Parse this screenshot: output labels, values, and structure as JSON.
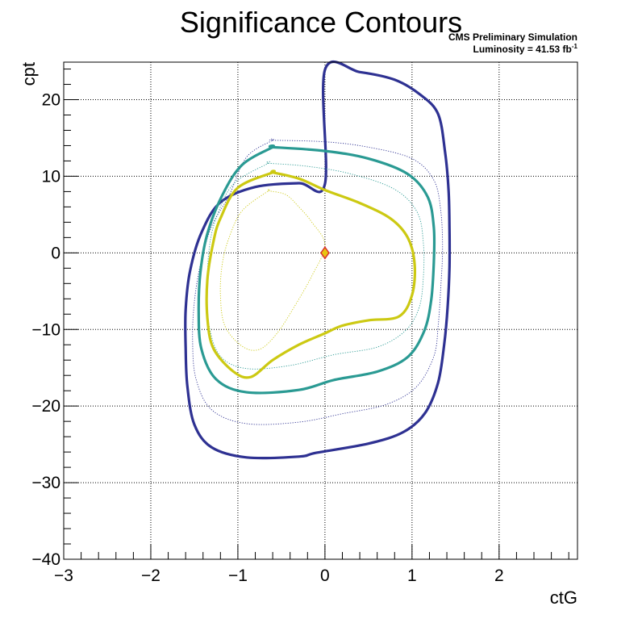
{
  "chart_data": {
    "type": "contour",
    "title": "Significance Contours",
    "annotations": {
      "experiment": "CMS Preliminary Simulation",
      "luminosity_text": "Luminosity = 41.53 fb",
      "luminosity_exponent": "-1"
    },
    "xlabel": "ctG",
    "ylabel": "cpt",
    "xlim": [
      -3,
      2.9
    ],
    "ylim": [
      -40,
      24.9
    ],
    "x_ticks": [
      -3,
      -2,
      -1,
      0,
      1,
      2
    ],
    "y_ticks": [
      -40,
      -30,
      -20,
      -10,
      0,
      10,
      20
    ],
    "x_tick_labels": [
      "−3",
      "−2",
      "−1",
      "0",
      "1",
      "2"
    ],
    "y_tick_labels": [
      "−40",
      "−30",
      "−20",
      "−10",
      "0",
      "10",
      "20"
    ],
    "grid": true,
    "best_fit_point": {
      "x": 0,
      "y": 0,
      "color": "#e8c410",
      "edge_color": "#d9302c"
    },
    "series": [
      {
        "style": "thick",
        "color": "#2e3192",
        "points": [
          [
            0,
            23.9
          ],
          [
            0.4,
            23.6
          ],
          [
            0.8,
            22.6
          ],
          [
            1.1,
            20.6
          ],
          [
            1.3,
            18.1
          ],
          [
            1.38,
            13.1
          ],
          [
            1.42,
            8.1
          ],
          [
            1.43,
            3.1
          ],
          [
            1.43,
            -1.9
          ],
          [
            1.41,
            -6.9
          ],
          [
            1.37,
            -11.9
          ],
          [
            1.3,
            -16.9
          ],
          [
            1.15,
            -20.9
          ],
          [
            0.9,
            -23.4
          ],
          [
            0.5,
            -24.9
          ],
          [
            -0.1,
            -26.1
          ],
          [
            -0.3,
            -26.6
          ],
          [
            -0.9,
            -26.7
          ],
          [
            -1.3,
            -25.4
          ],
          [
            -1.5,
            -22.4
          ],
          [
            -1.58,
            -17.4
          ],
          [
            -1.6,
            -12.4
          ],
          [
            -1.6,
            -7.4
          ],
          [
            -1.55,
            -2.4
          ],
          [
            -1.42,
            2.6
          ],
          [
            -1.2,
            6.6
          ],
          [
            -0.8,
            8.6
          ],
          [
            -0.3,
            9.1
          ],
          [
            0,
            9.0
          ]
        ]
      },
      {
        "style": "thin",
        "color": "#2e3192",
        "points": [
          [
            -0.6,
            14.7
          ],
          [
            0,
            14.5
          ],
          [
            0.5,
            13.8
          ],
          [
            1.0,
            12.3
          ],
          [
            1.25,
            9.5
          ],
          [
            1.33,
            5.5
          ],
          [
            1.35,
            0.5
          ],
          [
            1.33,
            -4.5
          ],
          [
            1.3,
            -9.5
          ],
          [
            1.25,
            -13.5
          ],
          [
            1.05,
            -17.5
          ],
          [
            0.7,
            -19.8
          ],
          [
            0.2,
            -21.0
          ],
          [
            -0.3,
            -22.1
          ],
          [
            -0.9,
            -22.3
          ],
          [
            -1.3,
            -20.5
          ],
          [
            -1.48,
            -16.5
          ],
          [
            -1.52,
            -11.5
          ],
          [
            -1.5,
            -6.5
          ],
          [
            -1.43,
            -1.5
          ],
          [
            -1.3,
            3.5
          ],
          [
            -1.1,
            7.5
          ],
          [
            -0.9,
            12.5
          ],
          [
            -0.6,
            14.7
          ]
        ]
      },
      {
        "style": "thick",
        "color": "#2a9a93",
        "points": [
          [
            -0.6,
            13.8
          ],
          [
            0,
            13.3
          ],
          [
            0.5,
            12.3
          ],
          [
            0.95,
            10.3
          ],
          [
            1.18,
            7.3
          ],
          [
            1.25,
            3.3
          ],
          [
            1.25,
            -1.2
          ],
          [
            1.22,
            -6.2
          ],
          [
            1.14,
            -10.2
          ],
          [
            0.95,
            -13.6
          ],
          [
            0.6,
            -15.5
          ],
          [
            0.1,
            -16.6
          ],
          [
            -0.3,
            -17.9
          ],
          [
            -0.9,
            -18.2
          ],
          [
            -1.25,
            -16.5
          ],
          [
            -1.42,
            -12.5
          ],
          [
            -1.45,
            -7.5
          ],
          [
            -1.43,
            -2.5
          ],
          [
            -1.35,
            2.5
          ],
          [
            -1.18,
            7.5
          ],
          [
            -0.95,
            11.5
          ],
          [
            -0.6,
            13.8
          ]
        ]
      },
      {
        "style": "thin",
        "color": "#2a9a93",
        "points": [
          [
            -0.65,
            11.7
          ],
          [
            -0.2,
            11.3
          ],
          [
            0.3,
            10.3
          ],
          [
            0.8,
            8.3
          ],
          [
            1.06,
            5.3
          ],
          [
            1.13,
            1.3
          ],
          [
            1.13,
            -3.2
          ],
          [
            1.08,
            -7.2
          ],
          [
            0.92,
            -10.2
          ],
          [
            0.6,
            -12.3
          ],
          [
            0.1,
            -13.3
          ],
          [
            -0.4,
            -14.7
          ],
          [
            -0.9,
            -15.1
          ],
          [
            -1.2,
            -13.5
          ],
          [
            -1.33,
            -9.5
          ],
          [
            -1.35,
            -4.5
          ],
          [
            -1.33,
            0.5
          ],
          [
            -1.25,
            4.5
          ],
          [
            -1.05,
            9.0
          ],
          [
            -0.65,
            11.7
          ]
        ]
      },
      {
        "style": "thick",
        "color": "#ccc912",
        "points": [
          [
            -0.6,
            10.5
          ],
          [
            -0.3,
            9.7
          ],
          [
            0,
            8.2
          ],
          [
            0.4,
            6.5
          ],
          [
            0.75,
            4.5
          ],
          [
            0.95,
            2
          ],
          [
            1.03,
            -1.5
          ],
          [
            1.0,
            -5.5
          ],
          [
            0.85,
            -8.3
          ],
          [
            0.5,
            -8.8
          ],
          [
            0.2,
            -9.5
          ],
          [
            0,
            -10.5
          ],
          [
            -0.3,
            -12.0
          ],
          [
            -0.6,
            -14.0
          ],
          [
            -0.85,
            -16.2
          ],
          [
            -1.05,
            -15.5
          ],
          [
            -1.28,
            -12.5
          ],
          [
            -1.35,
            -8.5
          ],
          [
            -1.35,
            -3.5
          ],
          [
            -1.28,
            1.5
          ],
          [
            -1.2,
            4.5
          ],
          [
            -1.0,
            8.5
          ],
          [
            -0.6,
            10.5
          ]
        ]
      },
      {
        "style": "thin",
        "color": "#ccc912",
        "points": [
          [
            -0.65,
            8.1
          ],
          [
            -0.45,
            7.6
          ],
          [
            -0.3,
            6.0
          ],
          [
            -0.15,
            4.0
          ],
          [
            0,
            1.0
          ],
          [
            -0.15,
            -3.0
          ],
          [
            -0.35,
            -7.0
          ],
          [
            -0.55,
            -10.5
          ],
          [
            -0.75,
            -12.6
          ],
          [
            -0.95,
            -12.2
          ],
          [
            -1.15,
            -9.5
          ],
          [
            -1.2,
            -5.5
          ],
          [
            -1.18,
            -1.5
          ],
          [
            -1.1,
            2.0
          ],
          [
            -0.95,
            5.5
          ],
          [
            -0.65,
            8.1
          ]
        ]
      }
    ]
  }
}
